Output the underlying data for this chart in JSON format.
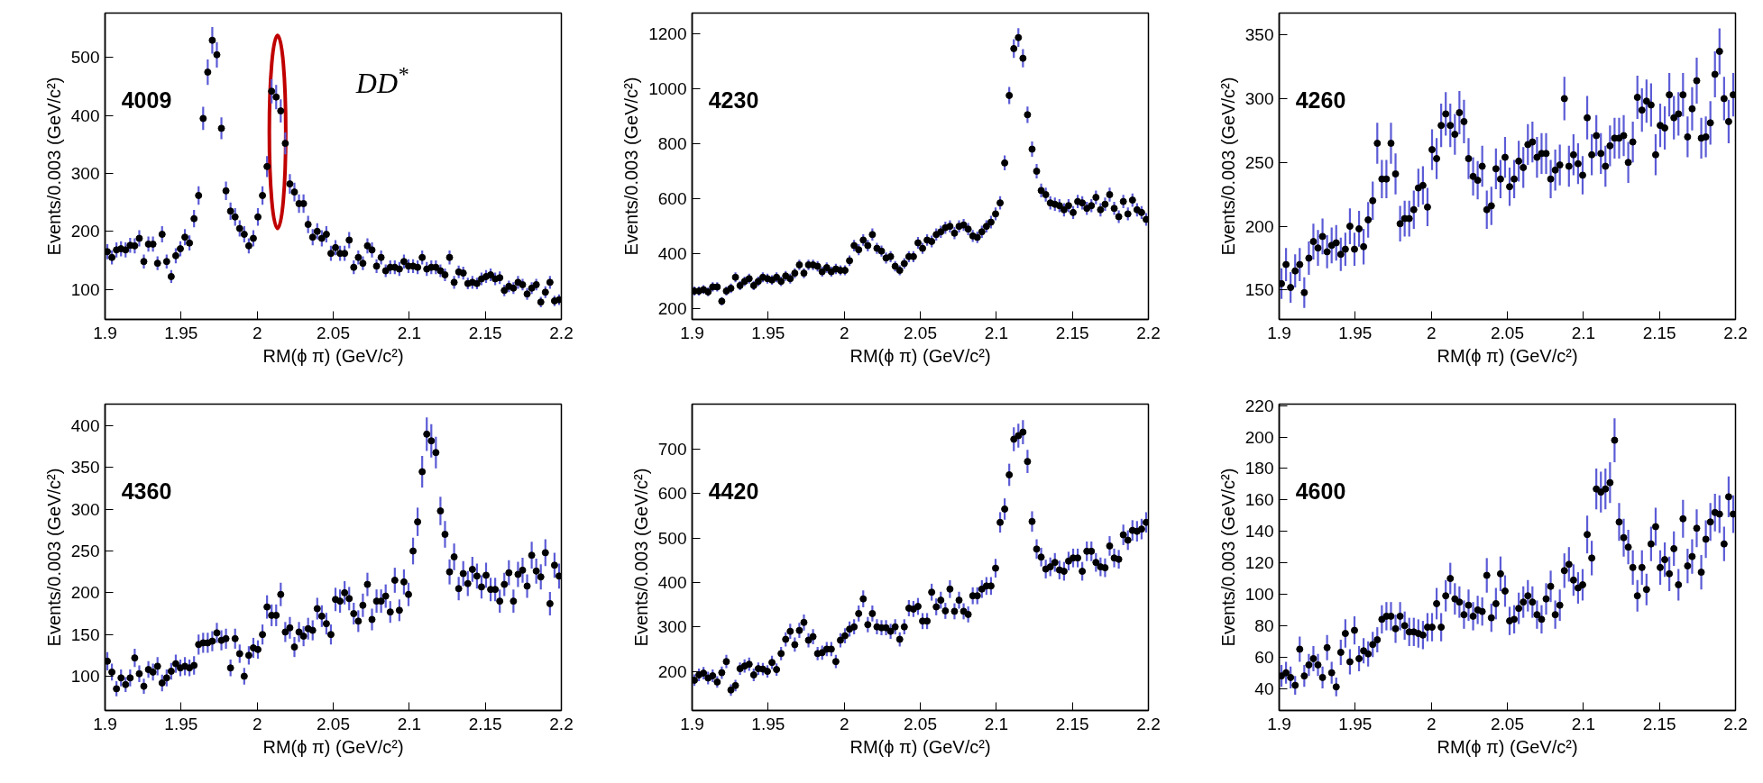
{
  "chart_data": [
    {
      "type": "scatter",
      "marker": "circle",
      "grid": false,
      "color": "#000000",
      "xlabel": "RM(ϕ π) (GeV/c²)",
      "ylabel": "Events/0.003 (GeV/c²)",
      "xlim": [
        1.9,
        2.2
      ],
      "ylim": [
        48,
        577
      ],
      "xticks": [
        1.9,
        1.95,
        2,
        2.05,
        2.1,
        2.15,
        2.2
      ],
      "yticks": [
        100,
        200,
        300,
        400,
        500
      ],
      "annotations": [
        "4009",
        "DD$^{*}$"
      ],
      "x": [
        1.9015,
        1.9045,
        1.9075,
        1.9105,
        1.9135,
        1.9165,
        1.9195,
        1.9225,
        1.9255,
        1.9285,
        1.9315,
        1.9345,
        1.9375,
        1.9405,
        1.9435,
        1.9465,
        1.9495,
        1.9525,
        1.9555,
        1.9585,
        1.9615,
        1.9645,
        1.9675,
        1.9705,
        1.9735,
        1.9765,
        1.9795,
        1.9825,
        1.9855,
        1.9885,
        1.9915,
        1.9945,
        1.9975,
        2.0005,
        2.0035,
        2.0065,
        2.0095,
        2.0125,
        2.0155,
        2.0185,
        2.0215,
        2.0245,
        2.0275,
        2.0305,
        2.0335,
        2.0365,
        2.0395,
        2.0425,
        2.0455,
        2.0485,
        2.0515,
        2.0545,
        2.0575,
        2.0605,
        2.0635,
        2.0665,
        2.0695,
        2.0725,
        2.0755,
        2.0785,
        2.0815,
        2.0845,
        2.0875,
        2.0905,
        2.0935,
        2.0965,
        2.0995,
        2.1025,
        2.1055,
        2.1085,
        2.1115,
        2.1145,
        2.1175,
        2.1205,
        2.1235,
        2.1265,
        2.1295,
        2.1325,
        2.1355,
        2.1385,
        2.1415,
        2.1445,
        2.1475,
        2.1505,
        2.1535,
        2.1565,
        2.1595,
        2.1625,
        2.1655,
        2.1685,
        2.1715,
        2.1745,
        2.1775,
        2.1805,
        2.1835,
        2.1865,
        2.1895,
        2.1925,
        2.1955,
        2.1985
      ],
      "values": [
        165,
        155,
        168,
        170,
        168,
        176,
        175,
        188,
        148,
        178,
        178,
        145,
        195,
        148,
        122,
        158,
        170,
        190,
        180,
        222,
        262,
        395,
        475,
        530,
        505,
        378,
        270,
        235,
        225,
        205,
        195,
        175,
        188,
        225,
        262,
        312,
        442,
        432,
        408,
        352,
        282,
        268,
        248,
        248,
        212,
        190,
        200,
        188,
        195,
        162,
        172,
        162,
        162,
        185,
        138,
        155,
        145,
        175,
        168,
        140,
        155,
        132,
        138,
        138,
        135,
        148,
        140,
        140,
        138,
        155,
        135,
        138,
        138,
        132,
        125,
        155,
        112,
        130,
        128,
        110,
        112,
        110,
        118,
        122,
        125,
        118,
        120,
        98,
        105,
        102,
        112,
        108,
        92,
        102,
        108,
        78,
        95,
        112,
        80,
        82
      ],
      "errors": [
        13,
        12,
        13,
        13,
        13,
        13,
        13,
        14,
        12,
        13,
        13,
        12,
        14,
        12,
        11,
        13,
        13,
        14,
        13,
        15,
        16,
        20,
        22,
        23,
        22,
        19,
        16,
        15,
        15,
        14,
        14,
        13,
        14,
        15,
        16,
        18,
        21,
        21,
        20,
        19,
        17,
        16,
        16,
        16,
        15,
        14,
        14,
        14,
        14,
        13,
        13,
        13,
        13,
        14,
        12,
        12,
        12,
        13,
        13,
        12,
        12,
        11,
        12,
        12,
        12,
        12,
        12,
        12,
        12,
        12,
        12,
        12,
        12,
        11,
        11,
        12,
        11,
        11,
        11,
        10,
        11,
        10,
        11,
        11,
        11,
        11,
        11,
        10,
        10,
        10,
        11,
        10,
        10,
        10,
        10,
        9,
        10,
        11,
        9,
        9
      ]
    },
    {
      "type": "scatter",
      "marker": "circle",
      "grid": false,
      "color": "#000000",
      "xlabel": "RM(ϕ π) (GeV/c²)",
      "ylabel": "Events/0.003 (GeV/c²)",
      "xlim": [
        1.9,
        2.2
      ],
      "ylim": [
        162,
        1274
      ],
      "xticks": [
        1.9,
        1.95,
        2,
        2.05,
        2.1,
        2.15,
        2.2
      ],
      "yticks": [
        200,
        400,
        600,
        800,
        1000,
        1200
      ],
      "annotations": [
        "4230"
      ],
      "x": [
        1.9015,
        1.9045,
        1.9075,
        1.9105,
        1.9135,
        1.9165,
        1.9195,
        1.9225,
        1.9255,
        1.9285,
        1.9315,
        1.9345,
        1.9375,
        1.9405,
        1.9435,
        1.9465,
        1.9495,
        1.9525,
        1.9555,
        1.9585,
        1.9615,
        1.9645,
        1.9675,
        1.9705,
        1.9735,
        1.9765,
        1.9795,
        1.9825,
        1.9855,
        1.9885,
        1.9915,
        1.9945,
        1.9975,
        2.0005,
        2.0035,
        2.0065,
        2.0095,
        2.0125,
        2.0155,
        2.0185,
        2.0215,
        2.0245,
        2.0275,
        2.0305,
        2.0335,
        2.0365,
        2.0395,
        2.0425,
        2.0455,
        2.0485,
        2.0515,
        2.0545,
        2.0575,
        2.0605,
        2.0635,
        2.0665,
        2.0695,
        2.0725,
        2.0755,
        2.0785,
        2.0815,
        2.0845,
        2.0875,
        2.0905,
        2.0935,
        2.0965,
        2.0995,
        2.1025,
        2.1055,
        2.1085,
        2.1115,
        2.1145,
        2.1175,
        2.1205,
        2.1235,
        2.1265,
        2.1295,
        2.1325,
        2.1355,
        2.1385,
        2.1415,
        2.1445,
        2.1475,
        2.1505,
        2.1535,
        2.1565,
        2.1595,
        2.1625,
        2.1655,
        2.1685,
        2.1715,
        2.1745,
        2.1775,
        2.1805,
        2.1835,
        2.1865,
        2.1895,
        2.1925,
        2.1955,
        2.1985
      ],
      "values": [
        265,
        265,
        270,
        262,
        280,
        280,
        228,
        265,
        275,
        315,
        285,
        300,
        310,
        285,
        300,
        315,
        310,
        305,
        315,
        300,
        320,
        310,
        330,
        360,
        330,
        360,
        360,
        355,
        335,
        350,
        335,
        345,
        340,
        340,
        375,
        430,
        415,
        450,
        430,
        470,
        420,
        410,
        385,
        390,
        355,
        340,
        365,
        390,
        390,
        440,
        420,
        450,
        445,
        470,
        480,
        495,
        500,
        475,
        500,
        505,
        490,
        465,
        460,
        480,
        500,
        515,
        545,
        585,
        730,
        975,
        1145,
        1185,
        1110,
        905,
        780,
        700,
        630,
        615,
        585,
        580,
        575,
        560,
        575,
        550,
        590,
        585,
        565,
        575,
        605,
        560,
        580,
        615,
        565,
        535,
        590,
        545,
        595,
        560,
        550,
        525
      ],
      "errors": [
        16,
        16,
        16,
        16,
        17,
        17,
        15,
        16,
        17,
        18,
        17,
        17,
        18,
        17,
        17,
        18,
        18,
        17,
        18,
        17,
        18,
        18,
        18,
        19,
        18,
        19,
        19,
        19,
        18,
        19,
        18,
        19,
        18,
        18,
        19,
        21,
        20,
        21,
        21,
        22,
        20,
        20,
        20,
        20,
        19,
        18,
        19,
        20,
        20,
        21,
        20,
        21,
        21,
        22,
        22,
        22,
        22,
        22,
        22,
        22,
        22,
        22,
        21,
        22,
        22,
        23,
        23,
        24,
        27,
        31,
        34,
        34,
        33,
        30,
        28,
        26,
        25,
        25,
        24,
        24,
        24,
        24,
        24,
        23,
        24,
        24,
        24,
        24,
        25,
        24,
        24,
        25,
        24,
        23,
        24,
        23,
        24,
        24,
        23,
        23
      ]
    },
    {
      "type": "scatter",
      "marker": "circle",
      "grid": false,
      "color": "#000000",
      "xlabel": "RM(ϕ π) (GeV/c²)",
      "ylabel": "Events/0.003 (GeV/c²)",
      "xlim": [
        1.9,
        2.2
      ],
      "ylim": [
        127,
        367
      ],
      "xticks": [
        1.9,
        1.95,
        2,
        2.05,
        2.1,
        2.15,
        2.2
      ],
      "yticks": [
        150,
        200,
        250,
        300,
        350
      ],
      "annotations": [
        "4260"
      ],
      "x": [
        1.9015,
        1.9045,
        1.9075,
        1.9105,
        1.9135,
        1.9165,
        1.9195,
        1.9225,
        1.9255,
        1.9285,
        1.9315,
        1.9345,
        1.9375,
        1.9405,
        1.9435,
        1.9465,
        1.9495,
        1.9525,
        1.9555,
        1.9585,
        1.9615,
        1.9645,
        1.9675,
        1.9705,
        1.9735,
        1.9765,
        1.9795,
        1.9825,
        1.9855,
        1.9885,
        1.9915,
        1.9945,
        1.9975,
        2.0005,
        2.0035,
        2.0065,
        2.0095,
        2.0125,
        2.0155,
        2.0185,
        2.0215,
        2.0245,
        2.0275,
        2.0305,
        2.0335,
        2.0365,
        2.0395,
        2.0425,
        2.0455,
        2.0485,
        2.0515,
        2.0545,
        2.0575,
        2.0605,
        2.0635,
        2.0665,
        2.0695,
        2.0725,
        2.0755,
        2.0785,
        2.0815,
        2.0845,
        2.0875,
        2.0905,
        2.0935,
        2.0965,
        2.0995,
        2.1025,
        2.1055,
        2.1085,
        2.1115,
        2.1145,
        2.1175,
        2.1205,
        2.1235,
        2.1265,
        2.1295,
        2.1325,
        2.1355,
        2.1385,
        2.1415,
        2.1445,
        2.1475,
        2.1505,
        2.1535,
        2.1565,
        2.1595,
        2.1625,
        2.1655,
        2.1685,
        2.1715,
        2.1745,
        2.1775,
        2.1805,
        2.1835,
        2.1865,
        2.1895,
        2.1925,
        2.1955,
        2.1985
      ],
      "values": [
        155,
        170,
        152,
        165,
        170,
        148,
        175,
        188,
        183,
        192,
        180,
        185,
        187,
        178,
        182,
        200,
        182,
        198,
        184,
        205,
        220,
        265,
        237,
        237,
        265,
        241,
        202,
        206,
        206,
        213,
        230,
        232,
        215,
        260,
        253,
        279,
        288,
        279,
        272,
        289,
        282,
        253,
        239,
        236,
        247,
        213,
        216,
        245,
        237,
        254,
        231,
        237,
        251,
        246,
        264,
        266,
        254,
        257,
        257,
        237,
        244,
        248,
        300,
        247,
        256,
        249,
        240,
        285,
        256,
        271,
        257,
        247,
        263,
        269,
        269,
        271,
        250,
        266,
        301,
        291,
        298,
        295,
        256,
        279,
        277,
        303,
        285,
        288,
        303,
        270,
        292,
        314,
        269,
        270,
        281,
        319,
        337,
        300,
        282,
        303
      ],
      "errors": [
        12,
        13,
        12,
        13,
        13,
        12,
        13,
        14,
        14,
        14,
        13,
        14,
        14,
        13,
        13,
        14,
        13,
        14,
        14,
        14,
        15,
        16,
        15,
        15,
        16,
        16,
        14,
        14,
        14,
        15,
        15,
        15,
        15,
        16,
        16,
        17,
        17,
        17,
        16,
        17,
        17,
        16,
        15,
        15,
        16,
        15,
        15,
        16,
        15,
        16,
        15,
        15,
        16,
        16,
        16,
        16,
        16,
        16,
        16,
        15,
        16,
        16,
        17,
        16,
        16,
        16,
        15,
        17,
        16,
        16,
        16,
        16,
        16,
        16,
        16,
        16,
        16,
        16,
        17,
        17,
        17,
        17,
        16,
        17,
        17,
        17,
        17,
        17,
        17,
        16,
        17,
        18,
        16,
        16,
        17,
        18,
        18,
        17,
        17,
        17
      ]
    },
    {
      "type": "scatter",
      "marker": "circle",
      "grid": false,
      "color": "#000000",
      "xlabel": "RM(ϕ π) (GeV/c²)",
      "ylabel": "Events/0.003 (GeV/c²)",
      "xlim": [
        1.9,
        2.2
      ],
      "ylim": [
        59,
        426
      ],
      "xticks": [
        1.9,
        1.95,
        2,
        2.05,
        2.1,
        2.15,
        2.2
      ],
      "yticks": [
        100,
        150,
        200,
        250,
        300,
        350,
        400
      ],
      "annotations": [
        "4360"
      ],
      "x": [
        1.9015,
        1.9045,
        1.9075,
        1.9105,
        1.9135,
        1.9165,
        1.9195,
        1.9225,
        1.9255,
        1.9285,
        1.9315,
        1.9345,
        1.9375,
        1.9405,
        1.9435,
        1.9465,
        1.9495,
        1.9525,
        1.9555,
        1.9585,
        1.9615,
        1.9645,
        1.9675,
        1.9705,
        1.9735,
        1.9765,
        1.9795,
        1.9825,
        1.9855,
        1.9885,
        1.9915,
        1.9945,
        1.9975,
        2.0005,
        2.0035,
        2.0065,
        2.0095,
        2.0125,
        2.0155,
        2.0185,
        2.0215,
        2.0245,
        2.0275,
        2.0305,
        2.0335,
        2.0365,
        2.0395,
        2.0425,
        2.0455,
        2.0485,
        2.0515,
        2.0545,
        2.0575,
        2.0605,
        2.0635,
        2.0665,
        2.0695,
        2.0725,
        2.0755,
        2.0785,
        2.0815,
        2.0845,
        2.0875,
        2.0905,
        2.0935,
        2.0965,
        2.0995,
        2.1025,
        2.1055,
        2.1085,
        2.1115,
        2.1145,
        2.1175,
        2.1205,
        2.1235,
        2.1265,
        2.1295,
        2.1325,
        2.1355,
        2.1385,
        2.1415,
        2.1445,
        2.1475,
        2.1505,
        2.1535,
        2.1565,
        2.1595,
        2.1625,
        2.1655,
        2.1685,
        2.1715,
        2.1745,
        2.1775,
        2.1805,
        2.1835,
        2.1865,
        2.1895,
        2.1925,
        2.1955,
        2.1985
      ],
      "values": [
        118,
        105,
        85,
        98,
        90,
        98,
        122,
        103,
        88,
        108,
        105,
        112,
        92,
        98,
        106,
        115,
        110,
        112,
        110,
        113,
        138,
        140,
        140,
        142,
        152,
        143,
        145,
        110,
        145,
        127,
        100,
        125,
        134,
        132,
        150,
        183,
        173,
        173,
        198,
        153,
        158,
        135,
        153,
        148,
        157,
        155,
        181,
        172,
        163,
        150,
        192,
        190,
        200,
        193,
        175,
        166,
        185,
        210,
        168,
        190,
        190,
        196,
        177,
        215,
        179,
        213,
        198,
        250,
        285,
        345,
        390,
        382,
        368,
        298,
        270,
        225,
        243,
        205,
        223,
        211,
        228,
        220,
        207,
        221,
        204,
        204,
        190,
        210,
        224,
        190,
        222,
        227,
        208,
        245,
        226,
        219,
        248,
        187,
        233,
        220
      ],
      "errors": [
        11,
        10,
        9,
        10,
        9,
        10,
        11,
        10,
        9,
        10,
        10,
        11,
        10,
        10,
        10,
        11,
        10,
        11,
        10,
        11,
        12,
        12,
        12,
        12,
        12,
        12,
        12,
        10,
        12,
        11,
        10,
        11,
        12,
        11,
        12,
        14,
        13,
        13,
        14,
        12,
        13,
        12,
        12,
        12,
        13,
        12,
        13,
        13,
        13,
        12,
        14,
        14,
        14,
        14,
        13,
        13,
        14,
        14,
        13,
        14,
        14,
        14,
        13,
        15,
        13,
        15,
        14,
        16,
        17,
        19,
        20,
        20,
        19,
        17,
        16,
        15,
        16,
        14,
        15,
        15,
        15,
        15,
        14,
        15,
        14,
        14,
        14,
        14,
        15,
        14,
        15,
        15,
        14,
        16,
        15,
        15,
        16,
        14,
        15,
        15
      ]
    },
    {
      "type": "scatter",
      "marker": "circle",
      "grid": false,
      "color": "#000000",
      "xlabel": "RM(ϕ π) (GeV/c²)",
      "ylabel": "Events/0.003 (GeV/c²)",
      "xlim": [
        1.9,
        2.2
      ],
      "ylim": [
        112,
        801
      ],
      "xticks": [
        1.9,
        1.95,
        2,
        2.05,
        2.1,
        2.15,
        2.2
      ],
      "yticks": [
        200,
        300,
        400,
        500,
        600,
        700
      ],
      "annotations": [
        "4420"
      ],
      "x": [
        1.9015,
        1.9045,
        1.9075,
        1.9105,
        1.9135,
        1.9165,
        1.9195,
        1.9225,
        1.9255,
        1.9285,
        1.9315,
        1.9345,
        1.9375,
        1.9405,
        1.9435,
        1.9465,
        1.9495,
        1.9525,
        1.9555,
        1.9585,
        1.9615,
        1.9645,
        1.9675,
        1.9705,
        1.9735,
        1.9765,
        1.9795,
        1.9825,
        1.9855,
        1.9885,
        1.9915,
        1.9945,
        1.9975,
        2.0005,
        2.0035,
        2.0065,
        2.0095,
        2.0125,
        2.0155,
        2.0185,
        2.0215,
        2.0245,
        2.0275,
        2.0305,
        2.0335,
        2.0365,
        2.0395,
        2.0425,
        2.0455,
        2.0485,
        2.0515,
        2.0545,
        2.0575,
        2.0605,
        2.0635,
        2.0665,
        2.0695,
        2.0725,
        2.0755,
        2.0785,
        2.0815,
        2.0845,
        2.0875,
        2.0905,
        2.0935,
        2.0965,
        2.0995,
        2.1025,
        2.1055,
        2.1085,
        2.1115,
        2.1145,
        2.1175,
        2.1205,
        2.1235,
        2.1265,
        2.1295,
        2.1325,
        2.1355,
        2.1385,
        2.1415,
        2.1445,
        2.1475,
        2.1505,
        2.1535,
        2.1565,
        2.1595,
        2.1625,
        2.1655,
        2.1685,
        2.1715,
        2.1745,
        2.1775,
        2.1805,
        2.1835,
        2.1865,
        2.1895,
        2.1925,
        2.1955,
        2.1985
      ],
      "values": [
        180,
        192,
        196,
        185,
        190,
        176,
        197,
        222,
        158,
        168,
        206,
        212,
        216,
        192,
        206,
        205,
        200,
        220,
        204,
        240,
        272,
        290,
        260,
        292,
        310,
        270,
        278,
        240,
        242,
        250,
        250,
        222,
        270,
        280,
        295,
        300,
        330,
        363,
        305,
        330,
        300,
        298,
        298,
        290,
        300,
        272,
        300,
        342,
        340,
        346,
        313,
        313,
        378,
        345,
        360,
        336,
        385,
        335,
        360,
        335,
        328,
        370,
        370,
        385,
        392,
        392,
        432,
        535,
        565,
        642,
        722,
        730,
        738,
        672,
        537,
        475,
        457,
        430,
        435,
        445,
        428,
        425,
        448,
        455,
        455,
        425,
        470,
        470,
        445,
        435,
        433,
        482,
        455,
        452,
        507,
        495,
        517,
        515,
        520,
        535
      ],
      "errors": [
        13,
        14,
        14,
        14,
        14,
        13,
        14,
        15,
        13,
        13,
        14,
        15,
        15,
        14,
        14,
        14,
        14,
        15,
        14,
        15,
        16,
        17,
        16,
        17,
        18,
        16,
        17,
        15,
        16,
        16,
        16,
        15,
        16,
        17,
        17,
        17,
        18,
        19,
        17,
        18,
        17,
        17,
        17,
        17,
        17,
        16,
        17,
        18,
        18,
        19,
        18,
        18,
        19,
        19,
        19,
        18,
        20,
        18,
        19,
        18,
        18,
        19,
        19,
        20,
        20,
        20,
        21,
        23,
        24,
        25,
        27,
        27,
        27,
        26,
        23,
        22,
        21,
        21,
        21,
        21,
        21,
        21,
        21,
        21,
        21,
        21,
        22,
        22,
        21,
        21,
        21,
        22,
        21,
        21,
        23,
        22,
        23,
        23,
        23,
        23
      ]
    },
    {
      "type": "scatter",
      "marker": "circle",
      "grid": false,
      "color": "#000000",
      "xlabel": "RM(ϕ π) (GeV/c²)",
      "ylabel": "Events/0.003 (GeV/c²)",
      "xlim": [
        1.9,
        2.2
      ],
      "ylim": [
        26,
        221
      ],
      "xticks": [
        1.9,
        1.95,
        2,
        2.05,
        2.1,
        2.15,
        2.2
      ],
      "yticks": [
        40,
        60,
        80,
        100,
        120,
        140,
        160,
        180,
        200,
        220
      ],
      "annotations": [
        "4600"
      ],
      "x": [
        1.9015,
        1.9045,
        1.9075,
        1.9105,
        1.9135,
        1.9165,
        1.9195,
        1.9225,
        1.9255,
        1.9285,
        1.9315,
        1.9345,
        1.9375,
        1.9405,
        1.9435,
        1.9465,
        1.9495,
        1.9525,
        1.9555,
        1.9585,
        1.9615,
        1.9645,
        1.9675,
        1.9705,
        1.9735,
        1.9765,
        1.9795,
        1.9825,
        1.9855,
        1.9885,
        1.9915,
        1.9945,
        1.9975,
        2.0005,
        2.0035,
        2.0065,
        2.0095,
        2.0125,
        2.0155,
        2.0185,
        2.0215,
        2.0245,
        2.0275,
        2.0305,
        2.0335,
        2.0365,
        2.0395,
        2.0425,
        2.0455,
        2.0485,
        2.0515,
        2.0545,
        2.0575,
        2.0605,
        2.0635,
        2.0665,
        2.0695,
        2.0725,
        2.0755,
        2.0785,
        2.0815,
        2.0845,
        2.0875,
        2.0905,
        2.0935,
        2.0965,
        2.0995,
        2.1025,
        2.1055,
        2.1085,
        2.1115,
        2.1145,
        2.1175,
        2.1205,
        2.1235,
        2.1265,
        2.1295,
        2.1325,
        2.1355,
        2.1385,
        2.1415,
        2.1445,
        2.1475,
        2.1505,
        2.1535,
        2.1565,
        2.1595,
        2.1625,
        2.1655,
        2.1685,
        2.1715,
        2.1745,
        2.1775,
        2.1805,
        2.1835,
        2.1865,
        2.1895,
        2.1925,
        2.1955,
        2.1985
      ],
      "values": [
        48,
        50,
        47,
        42,
        65,
        48,
        55,
        59,
        55,
        47,
        66,
        50,
        41,
        63,
        75,
        57,
        77,
        59,
        64,
        62,
        68,
        71,
        84,
        86,
        86,
        78,
        86,
        80,
        76,
        76,
        75,
        74,
        79,
        79,
        94,
        79,
        99,
        110,
        97,
        95,
        87,
        93,
        86,
        90,
        89,
        112,
        85,
        94,
        113,
        102,
        83,
        84,
        91,
        95,
        99,
        95,
        87,
        84,
        97,
        105,
        87,
        93,
        115,
        119,
        109,
        104,
        106,
        138,
        123,
        167,
        165,
        167,
        171,
        198,
        146,
        136,
        130,
        117,
        99,
        117,
        103,
        132,
        143,
        117,
        122,
        113,
        129,
        106,
        148,
        118,
        124,
        142,
        114,
        135,
        146,
        152,
        151,
        132,
        162,
        151
      ],
      "errors": [
        7,
        7,
        7,
        6,
        8,
        7,
        7,
        8,
        7,
        7,
        8,
        7,
        6,
        8,
        9,
        8,
        9,
        8,
        8,
        8,
        8,
        8,
        9,
        9,
        9,
        9,
        9,
        9,
        9,
        9,
        9,
        9,
        9,
        9,
        10,
        9,
        10,
        10,
        10,
        10,
        9,
        10,
        9,
        9,
        9,
        11,
        9,
        10,
        11,
        10,
        9,
        9,
        10,
        10,
        10,
        10,
        9,
        9,
        10,
        10,
        9,
        10,
        11,
        11,
        10,
        10,
        10,
        12,
        11,
        13,
        13,
        13,
        13,
        14,
        12,
        12,
        11,
        11,
        10,
        11,
        10,
        11,
        12,
        11,
        11,
        11,
        11,
        10,
        12,
        11,
        11,
        12,
        11,
        12,
        12,
        12,
        12,
        11,
        13,
        12
      ]
    }
  ]
}
